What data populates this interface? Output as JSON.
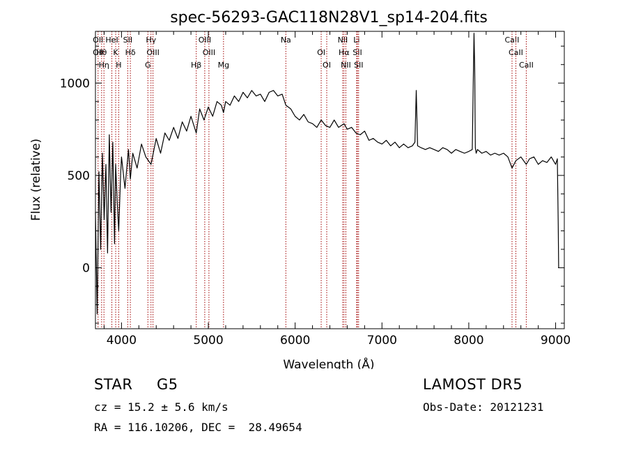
{
  "chart_data": {
    "type": "line",
    "title": "spec-56293-GAC118N28V1_sp14-204.fits",
    "xlabel": "Wavelength (Å)",
    "ylabel": "Flux (relative)",
    "xlim": [
      3700,
      9100
    ],
    "ylim": [
      -330,
      1280
    ],
    "xticks": [
      4000,
      5000,
      6000,
      7000,
      8000,
      9000
    ],
    "yticks": [
      0,
      500,
      1000
    ],
    "grid": false,
    "series": [
      {
        "x": [
          3700,
          3720,
          3740,
          3760,
          3780,
          3800,
          3820,
          3840,
          3860,
          3880,
          3900,
          3920,
          3933,
          3950,
          3968,
          3990,
          4000,
          4040,
          4080,
          4102,
          4130,
          4180,
          4230,
          4280,
          4340,
          4400,
          4450,
          4500,
          4550,
          4600,
          4650,
          4700,
          4750,
          4800,
          4861,
          4900,
          4950,
          5000,
          5050,
          5100,
          5150,
          5175,
          5200,
          5250,
          5300,
          5350,
          5400,
          5450,
          5500,
          5550,
          5600,
          5650,
          5700,
          5750,
          5800,
          5850,
          5893,
          5950,
          6000,
          6050,
          6100,
          6150,
          6200,
          6250,
          6300,
          6350,
          6400,
          6450,
          6500,
          6563,
          6600,
          6650,
          6700,
          6750,
          6800,
          6850,
          6900,
          6950,
          7000,
          7050,
          7100,
          7150,
          7200,
          7250,
          7300,
          7350,
          7380,
          7395,
          7410,
          7450,
          7500,
          7550,
          7600,
          7650,
          7700,
          7750,
          7800,
          7850,
          7900,
          7950,
          8000,
          8040,
          8060,
          8068,
          8075,
          8085,
          8100,
          8150,
          8200,
          8250,
          8300,
          8350,
          8400,
          8450,
          8498,
          8542,
          8600,
          8662,
          8700,
          8750,
          8800,
          8850,
          8900,
          8950,
          9000,
          9020,
          9030,
          9035
        ],
        "y": [
          300,
          -250,
          520,
          100,
          620,
          260,
          560,
          80,
          720,
          300,
          680,
          130,
          560,
          360,
          200,
          500,
          600,
          430,
          640,
          480,
          620,
          540,
          670,
          600,
          560,
          700,
          620,
          730,
          690,
          760,
          700,
          790,
          740,
          820,
          730,
          860,
          800,
          870,
          820,
          900,
          880,
          840,
          900,
          880,
          930,
          900,
          950,
          920,
          960,
          930,
          940,
          900,
          950,
          960,
          930,
          940,
          880,
          860,
          820,
          800,
          830,
          790,
          780,
          760,
          800,
          770,
          760,
          800,
          760,
          780,
          750,
          760,
          730,
          720,
          740,
          690,
          700,
          680,
          670,
          690,
          660,
          680,
          650,
          670,
          650,
          660,
          680,
          960,
          660,
          650,
          640,
          650,
          640,
          630,
          650,
          640,
          620,
          640,
          630,
          620,
          630,
          640,
          1270,
          1080,
          650,
          620,
          640,
          620,
          630,
          610,
          620,
          610,
          620,
          600,
          540,
          580,
          600,
          560,
          590,
          600,
          560,
          580,
          570,
          600,
          560,
          590,
          230,
          0
        ]
      }
    ],
    "lines": [
      {
        "wl": 3730,
        "labels": [
          "OII",
          "OII"
        ]
      },
      {
        "wl": 3771,
        "labels": [
          "Hθ"
        ]
      },
      {
        "wl": 3798,
        "labels": [
          "Hη"
        ]
      },
      {
        "wl": 3889,
        "labels": [
          "HeI"
        ]
      },
      {
        "wl": 3933,
        "labels": [
          "K"
        ]
      },
      {
        "wl": 3968,
        "labels": [
          "H"
        ]
      },
      {
        "wl": 4072,
        "labels": [
          "SII"
        ]
      },
      {
        "wl": 4102,
        "labels": [
          "Hδ"
        ]
      },
      {
        "wl": 4304,
        "labels": [
          "G"
        ]
      },
      {
        "wl": 4340,
        "labels": [
          "Hγ"
        ]
      },
      {
        "wl": 4363,
        "labels": [
          "OIII"
        ]
      },
      {
        "wl": 4861,
        "labels": [
          "Hβ"
        ]
      },
      {
        "wl": 4959,
        "labels": [
          "OIII"
        ]
      },
      {
        "wl": 5007,
        "labels": [
          "OIII"
        ]
      },
      {
        "wl": 5175,
        "labels": [
          "Mg"
        ]
      },
      {
        "wl": 5893,
        "labels": [
          "Na"
        ]
      },
      {
        "wl": 6300,
        "labels": [
          "OI"
        ]
      },
      {
        "wl": 6364,
        "labels": [
          "OI"
        ]
      },
      {
        "wl": 6548,
        "labels": [
          "NII"
        ]
      },
      {
        "wl": 6563,
        "labels": [
          "Hα"
        ]
      },
      {
        "wl": 6584,
        "labels": [
          "NII"
        ]
      },
      {
        "wl": 6708,
        "labels": [
          "Li"
        ]
      },
      {
        "wl": 6717,
        "labels": [
          "SII"
        ]
      },
      {
        "wl": 6731,
        "labels": [
          "SII"
        ]
      },
      {
        "wl": 8498,
        "labels": [
          "CaII"
        ]
      },
      {
        "wl": 8542,
        "labels": [
          "CaII"
        ]
      },
      {
        "wl": 8662,
        "labels": [
          "CaII"
        ]
      }
    ]
  },
  "info": {
    "class": "STAR",
    "subclass": "G5",
    "cz": "cz = 15.2 ± 5.6 km/s",
    "coords": "RA = 116.10206, DEC =  28.49654",
    "survey": "LAMOST DR5",
    "obsdate": "Obs-Date: 20121231"
  },
  "colors": {
    "axes": "#000000",
    "spectrum": "#000000",
    "line_marker": "#a00000",
    "background": "#ffffff"
  }
}
